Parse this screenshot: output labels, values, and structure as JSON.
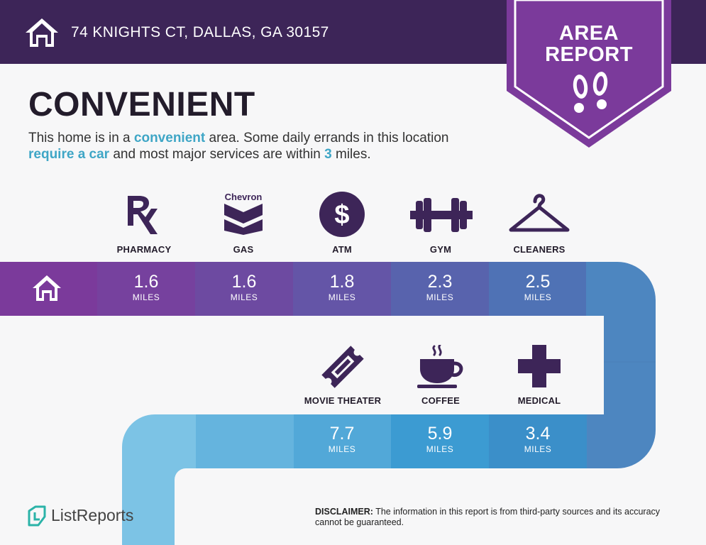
{
  "header": {
    "address": "74 KNIGHTS CT, DALLAS, GA 30157",
    "home_icon": "home-icon"
  },
  "badge": {
    "line1": "AREA",
    "line2": "REPORT",
    "icon": "footprints-icon"
  },
  "title": "CONVENIENT",
  "description": {
    "part1": "This home is in a ",
    "hl1": "convenient",
    "part2": " area. Some daily errands in this location ",
    "hl2": "require a car",
    "part3": " and most major services are within ",
    "hl3": "3",
    "part4": " miles."
  },
  "unit": "MILES",
  "row1": [
    {
      "label": "PHARMACY",
      "distance": "1.6",
      "icon": "pharmacy-rx-icon"
    },
    {
      "label": "GAS",
      "distance": "1.6",
      "icon": "chevron-gas-icon",
      "brand": "Chevron"
    },
    {
      "label": "ATM",
      "distance": "1.8",
      "icon": "dollar-coin-icon",
      "symbol": "$"
    },
    {
      "label": "GYM",
      "distance": "2.3",
      "icon": "dumbbell-icon"
    },
    {
      "label": "CLEANERS",
      "distance": "2.5",
      "icon": "hanger-icon"
    }
  ],
  "row2": [
    {
      "label": "MOVIE THEATER",
      "distance": "7.7",
      "icon": "movie-ticket-icon"
    },
    {
      "label": "COFFEE",
      "distance": "5.9",
      "icon": "coffee-cup-icon"
    },
    {
      "label": "MEDICAL",
      "distance": "3.4",
      "icon": "medical-cross-icon"
    }
  ],
  "footer": {
    "logo_text": "ListReports",
    "logo_icon": "listreports-logo-icon",
    "disclaimer_label": "DISCLAIMER:",
    "disclaimer_text": " The information in this report is from third-party sources and its accuracy cannot be guaranteed."
  },
  "colors": {
    "header": "#3d2558",
    "badge": "#7b3a9b",
    "accent_text": "#3fa6c6",
    "road_purple": "#7b3a9b",
    "road_blue": "#4d86c0",
    "road_light_blue": "#7cc3e5"
  }
}
